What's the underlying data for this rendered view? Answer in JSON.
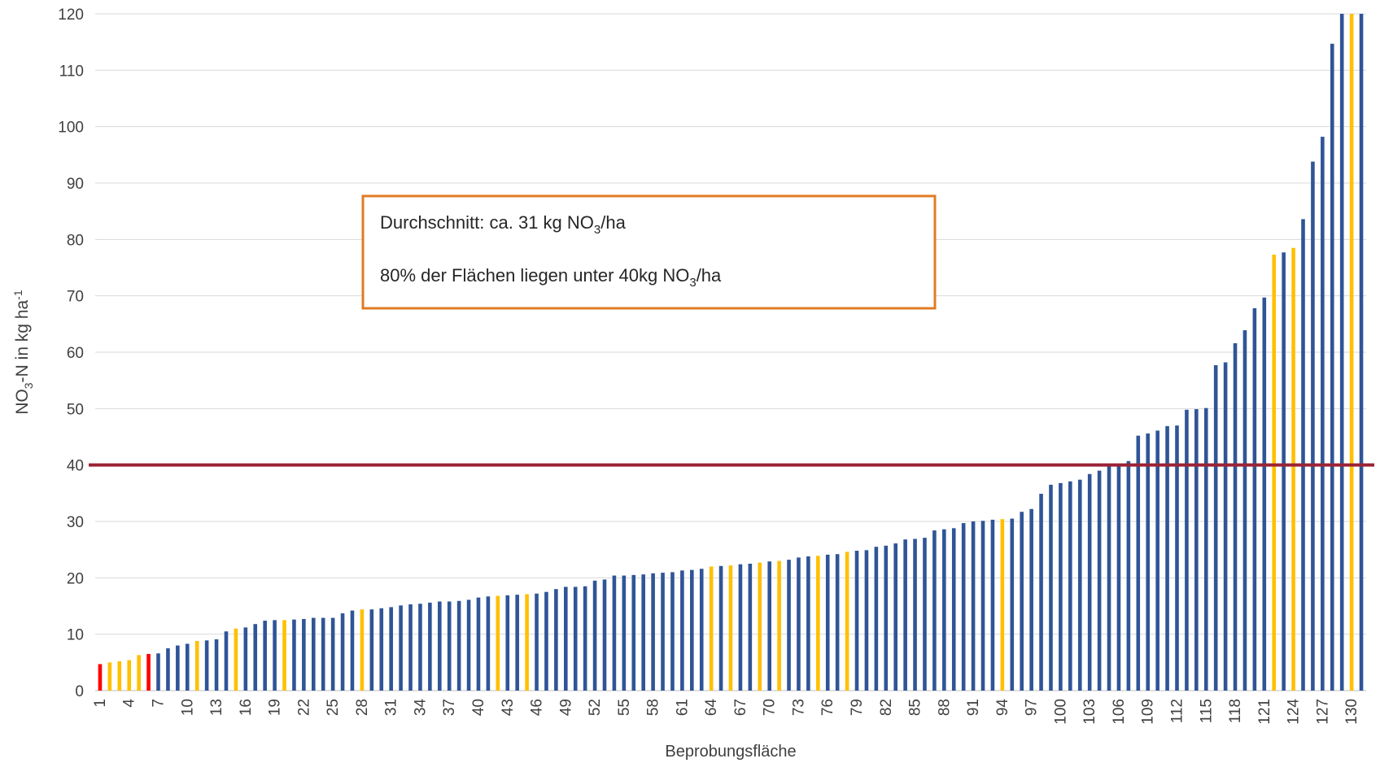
{
  "chart_data": {
    "type": "bar",
    "x_label": "Beprobungsfläche",
    "y_label": [
      "NO",
      "3",
      "-N in kg ha",
      "-1"
    ],
    "categories": [
      "1",
      null,
      null,
      "4",
      null,
      null,
      "7",
      null,
      null,
      "10",
      null,
      null,
      "13",
      null,
      null,
      "16",
      null,
      null,
      "19",
      null,
      null,
      "22",
      null,
      null,
      "25",
      null,
      null,
      "28",
      null,
      null,
      "31",
      null,
      null,
      "34",
      null,
      null,
      "37",
      null,
      null,
      "40",
      null,
      null,
      "43",
      null,
      null,
      "46",
      null,
      null,
      "49",
      null,
      null,
      "52",
      null,
      null,
      "55",
      null,
      null,
      "58",
      null,
      null,
      "61",
      null,
      null,
      "64",
      null,
      null,
      "67",
      null,
      null,
      "70",
      null,
      null,
      "73",
      null,
      null,
      "76",
      null,
      null,
      "79",
      null,
      null,
      "82",
      null,
      null,
      "85",
      null,
      null,
      "88",
      null,
      null,
      "91",
      null,
      null,
      "94",
      null,
      null,
      "97",
      null,
      null,
      "100",
      null,
      null,
      "103",
      null,
      null,
      "106",
      null,
      null,
      "109",
      null,
      null,
      "112",
      null,
      null,
      "115",
      null,
      null,
      "118",
      null,
      null,
      "121",
      null,
      null,
      "124",
      null,
      null,
      "127",
      null,
      null,
      "130",
      null
    ],
    "values": [
      4.7,
      5.0,
      5.2,
      5.4,
      6.3,
      6.5,
      6.6,
      7.5,
      8.0,
      8.3,
      8.8,
      8.9,
      9.1,
      10.5,
      11.0,
      11.2,
      11.8,
      12.4,
      12.5,
      12.5,
      12.6,
      12.7,
      12.9,
      12.9,
      12.9,
      13.7,
      14.2,
      14.4,
      14.4,
      14.6,
      14.8,
      15.1,
      15.3,
      15.4,
      15.6,
      15.8,
      15.8,
      15.9,
      16.1,
      16.5,
      16.7,
      16.8,
      16.9,
      17.0,
      17.1,
      17.2,
      17.5,
      18.0,
      18.4,
      18.4,
      18.5,
      19.5,
      19.7,
      20.4,
      20.4,
      20.5,
      20.6,
      20.8,
      20.9,
      21.0,
      21.3,
      21.4,
      21.6,
      22.0,
      22.1,
      22.2,
      22.4,
      22.5,
      22.7,
      22.9,
      23.0,
      23.2,
      23.6,
      23.8,
      23.9,
      24.1,
      24.2,
      24.6,
      24.8,
      24.9,
      25.5,
      25.7,
      26.1,
      26.8,
      26.9,
      27.1,
      28.4,
      28.6,
      28.8,
      29.7,
      30.0,
      30.1,
      30.3,
      30.4,
      30.5,
      31.7,
      32.2,
      34.9,
      36.5,
      36.8,
      37.1,
      37.4,
      38.4,
      39.0,
      40.0,
      40.1,
      40.7,
      45.2,
      45.6,
      46.1,
      46.9,
      47.0,
      49.8,
      49.9,
      50.1,
      57.7,
      58.2,
      61.6,
      63.9,
      67.8,
      69.7,
      77.3,
      77.7,
      78.5,
      83.6,
      93.8,
      98.2,
      114.7,
      120,
      120,
      120
    ],
    "colors": [
      "#ff0000",
      "#ffc000",
      "#ffc000",
      "#ffc000",
      "#ffc000",
      "#ff0000",
      "#2f5597",
      "#2f5597",
      "#2f5597",
      "#2f5597",
      "#ffc000",
      "#2f5597",
      "#2f5597",
      "#2f5597",
      "#ffc000",
      "#2f5597",
      "#2f5597",
      "#2f5597",
      "#2f5597",
      "#ffc000",
      "#2f5597",
      "#2f5597",
      "#2f5597",
      "#2f5597",
      "#2f5597",
      "#2f5597",
      "#2f5597",
      "#ffc000",
      "#2f5597",
      "#2f5597",
      "#2f5597",
      "#2f5597",
      "#2f5597",
      "#2f5597",
      "#2f5597",
      "#2f5597",
      "#2f5597",
      "#2f5597",
      "#2f5597",
      "#2f5597",
      "#2f5597",
      "#ffc000",
      "#2f5597",
      "#2f5597",
      "#ffc000",
      "#2f5597",
      "#2f5597",
      "#2f5597",
      "#2f5597",
      "#2f5597",
      "#2f5597",
      "#2f5597",
      "#2f5597",
      "#2f5597",
      "#2f5597",
      "#2f5597",
      "#2f5597",
      "#2f5597",
      "#2f5597",
      "#2f5597",
      "#2f5597",
      "#2f5597",
      "#2f5597",
      "#ffc000",
      "#2f5597",
      "#ffc000",
      "#2f5597",
      "#2f5597",
      "#ffc000",
      "#2f5597",
      "#ffc000",
      "#2f5597",
      "#2f5597",
      "#2f5597",
      "#ffc000",
      "#2f5597",
      "#2f5597",
      "#ffc000",
      "#2f5597",
      "#2f5597",
      "#2f5597",
      "#2f5597",
      "#2f5597",
      "#2f5597",
      "#2f5597",
      "#2f5597",
      "#2f5597",
      "#2f5597",
      "#2f5597",
      "#2f5597",
      "#2f5597",
      "#2f5597",
      "#2f5597",
      "#ffc000",
      "#2f5597",
      "#2f5597",
      "#2f5597",
      "#2f5597",
      "#2f5597",
      "#2f5597",
      "#2f5597",
      "#2f5597",
      "#2f5597",
      "#2f5597",
      "#2f5597",
      "#2f5597",
      "#2f5597",
      "#2f5597",
      "#2f5597",
      "#2f5597",
      "#2f5597",
      "#2f5597",
      "#2f5597",
      "#2f5597",
      "#2f5597",
      "#2f5597",
      "#2f5597",
      "#2f5597",
      "#2f5597",
      "#2f5597",
      "#2f5597",
      "#ffc000",
      "#2f5597",
      "#ffc000",
      "#2f5597",
      "#2f5597",
      "#2f5597",
      "#2f5597",
      "#2f5597",
      "#ffc000",
      "#2f5597"
    ],
    "ylim": [
      0,
      120
    ],
    "yticks": [
      0,
      10,
      20,
      30,
      40,
      50,
      60,
      70,
      80,
      90,
      100,
      110,
      120
    ],
    "grid": true,
    "reference_line": {
      "value": 40,
      "color": "#9b2335"
    },
    "annotations": [
      [
        "Durchschnitt:  ca. 31 kg NO",
        "3",
        "/ha"
      ],
      [
        "80% der Flächen liegen unter 40kg NO",
        "3",
        "/ha"
      ]
    ],
    "annotation_border_color": "#e07b24"
  }
}
